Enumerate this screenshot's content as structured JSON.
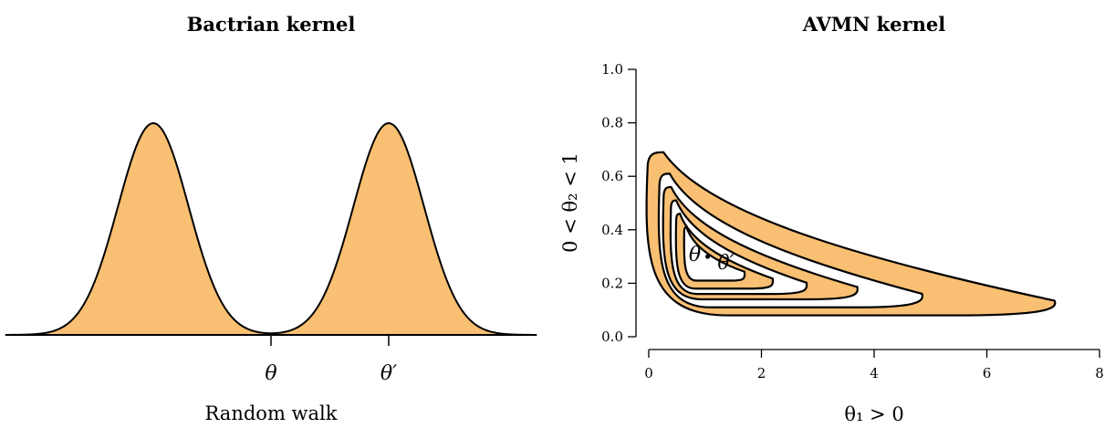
{
  "colors": {
    "fill": "#f9bf72",
    "line": "#000000",
    "background": "#ffffff"
  },
  "chart_data": [
    {
      "type": "area",
      "title": "Bactrian kernel",
      "xlabel": "Random walk",
      "ylabel": "",
      "grid": false,
      "legend": "none",
      "x_tick_labels": [
        "θ",
        "θ′"
      ],
      "series": [
        {
          "shape": "bimodal density (two normal humps)",
          "x_mode_left": -1,
          "x_mode_right": 1,
          "x_marker_center": 0,
          "x_marker_right": 1,
          "sd": 0.3,
          "x_range": [
            -2.25,
            2.25
          ]
        }
      ]
    },
    {
      "type": "area",
      "title": "AVMN kernel",
      "xlabel": "θ₁ > 0",
      "ylabel": "0 < θ₂ < 1",
      "xlim": [
        0,
        8
      ],
      "ylim": [
        0,
        1
      ],
      "x_ticks": [
        0,
        2,
        4,
        6,
        8
      ],
      "y_ticks": [
        0.0,
        0.2,
        0.4,
        0.6,
        0.8,
        1.0
      ],
      "y_tick_labels": [
        "0.0",
        "0.2",
        "0.4",
        "0.6",
        "0.8",
        "1.0"
      ],
      "grid": false,
      "legend": "none",
      "annotations": [
        "θ",
        "θ′"
      ],
      "contour_levels": [
        {
          "xmin": 0.12,
          "xmax": 7.2,
          "ymin": 0.08,
          "ymax": 0.69,
          "fill": "orange"
        },
        {
          "xmin": 0.28,
          "xmax": 4.85,
          "ymin": 0.11,
          "ymax": 0.61,
          "fill": "white"
        },
        {
          "xmin": 0.33,
          "xmax": 3.7,
          "ymin": 0.14,
          "ymax": 0.56,
          "fill": "orange"
        },
        {
          "xmin": 0.44,
          "xmax": 2.8,
          "ymin": 0.16,
          "ymax": 0.51,
          "fill": "white"
        },
        {
          "xmin": 0.52,
          "xmax": 2.2,
          "ymin": 0.18,
          "ymax": 0.46,
          "fill": "orange"
        },
        {
          "xmin": 0.65,
          "xmax": 1.7,
          "ymin": 0.21,
          "ymax": 0.41,
          "fill": "white"
        }
      ],
      "points": [
        {
          "label": "θ",
          "x": 0.98,
          "y": 0.31
        },
        {
          "label": "θ′",
          "x": 1.4,
          "y": 0.27
        }
      ]
    }
  ]
}
